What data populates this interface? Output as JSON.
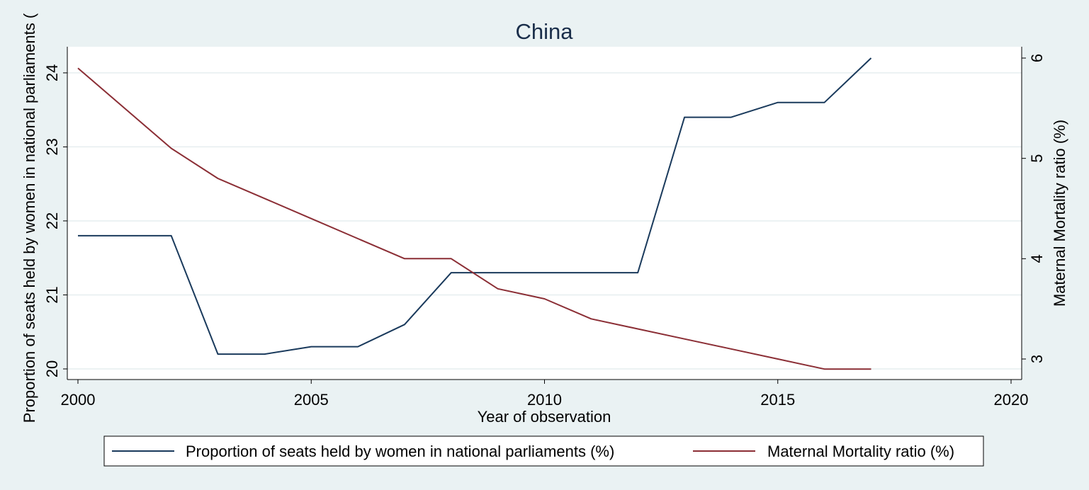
{
  "chart_data": {
    "type": "line",
    "title": "China",
    "xlabel": "Year of observation",
    "ylabel_left": "Proportion of seats held by women in national parliaments (",
    "ylabel_right": "Maternal Mortality ratio (%)",
    "xlim": [
      2000,
      2020
    ],
    "ylim_left": [
      20,
      24.2
    ],
    "ylim_right": [
      3,
      6
    ],
    "x_ticks": [
      "2000",
      "2005",
      "2010",
      "2015",
      "2020"
    ],
    "y_left_ticks": [
      "20",
      "21",
      "22",
      "23",
      "24"
    ],
    "y_right_ticks": [
      "3",
      "4",
      "5",
      "6"
    ],
    "grid": true,
    "legend_position": "bottom",
    "series": [
      {
        "name": "Proportion of seats held by women in national parliaments (%)",
        "axis": "left",
        "color": "#1a3a5c",
        "x": [
          2000,
          2001,
          2002,
          2003,
          2004,
          2005,
          2006,
          2007,
          2008,
          2009,
          2010,
          2011,
          2012,
          2013,
          2014,
          2015,
          2016,
          2017
        ],
        "values": [
          21.8,
          21.8,
          21.8,
          20.2,
          20.2,
          20.3,
          20.3,
          20.6,
          21.3,
          21.3,
          21.3,
          21.3,
          21.3,
          23.4,
          23.4,
          23.6,
          23.6,
          24.2
        ]
      },
      {
        "name": "Maternal Mortality ratio (%)",
        "axis": "right",
        "color": "#8b2e35",
        "x": [
          2000,
          2002,
          2003,
          2004,
          2005,
          2006,
          2007,
          2008,
          2009,
          2010,
          2011,
          2012,
          2013,
          2014,
          2015,
          2016,
          2017
        ],
        "values": [
          5.9,
          5.1,
          4.8,
          4.6,
          4.4,
          4.2,
          4.0,
          4.0,
          3.7,
          3.6,
          3.4,
          3.3,
          3.2,
          3.1,
          3.0,
          2.9,
          2.9
        ]
      }
    ]
  }
}
